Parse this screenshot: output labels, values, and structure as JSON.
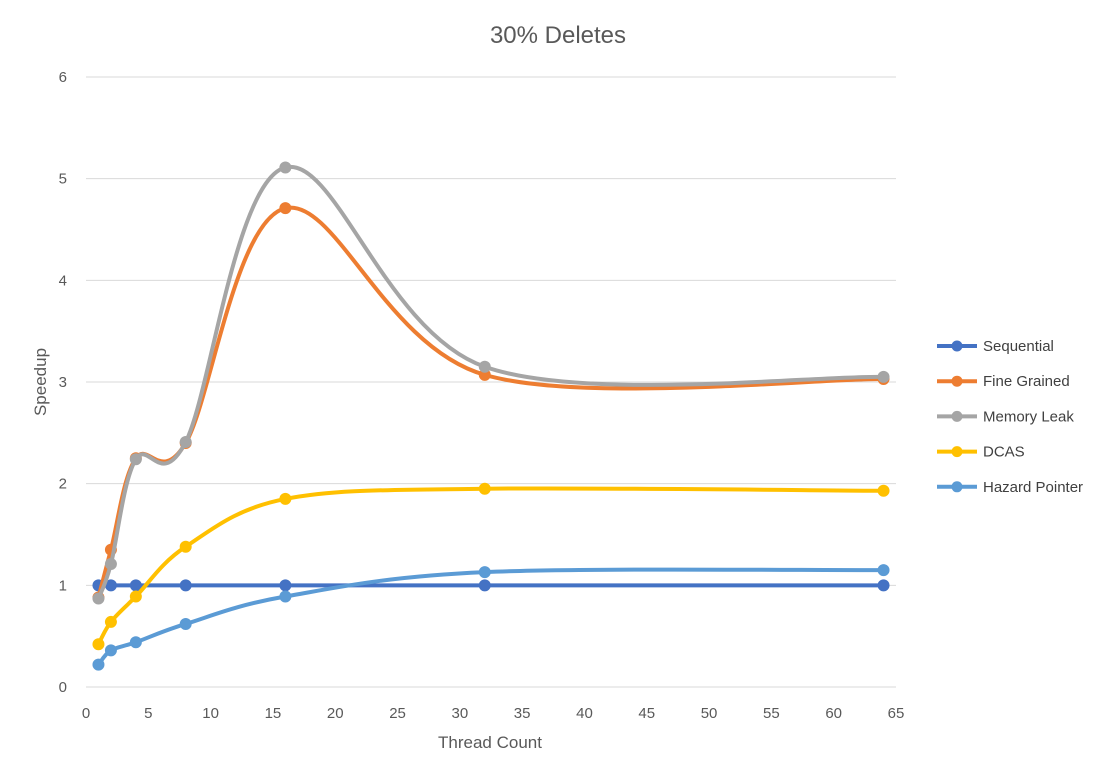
{
  "chart_data": {
    "type": "line",
    "title": "30% Deletes",
    "xlabel": "Thread Count",
    "ylabel": "Speedup",
    "xlim": [
      0,
      65
    ],
    "ylim": [
      0,
      6
    ],
    "x_ticks": [
      0,
      5,
      10,
      15,
      20,
      25,
      30,
      35,
      40,
      45,
      50,
      55,
      60,
      65
    ],
    "y_ticks": [
      0,
      1,
      2,
      3,
      4,
      5,
      6
    ],
    "grid": "horizontal",
    "legend_position": "right",
    "smoothed": true,
    "x": [
      1,
      2,
      4,
      8,
      16,
      32,
      64
    ],
    "series": [
      {
        "name": "Sequential",
        "color": "#4472C4",
        "values": [
          1.0,
          1.0,
          1.0,
          1.0,
          1.0,
          1.0,
          1.0
        ]
      },
      {
        "name": "Fine Grained",
        "color": "#ED7D31",
        "values": [
          0.88,
          1.35,
          2.25,
          2.4,
          4.71,
          3.07,
          3.03
        ]
      },
      {
        "name": "Memory Leak",
        "color": "#A5A5A5",
        "values": [
          0.87,
          1.21,
          2.24,
          2.41,
          5.11,
          3.15,
          3.05
        ]
      },
      {
        "name": "DCAS",
        "color": "#FFC000",
        "values": [
          0.42,
          0.64,
          0.89,
          1.38,
          1.85,
          1.95,
          1.93
        ]
      },
      {
        "name": "Hazard Pointer",
        "color": "#5B9BD5",
        "values": [
          0.22,
          0.36,
          0.44,
          0.62,
          0.89,
          1.13,
          1.15
        ]
      }
    ]
  }
}
